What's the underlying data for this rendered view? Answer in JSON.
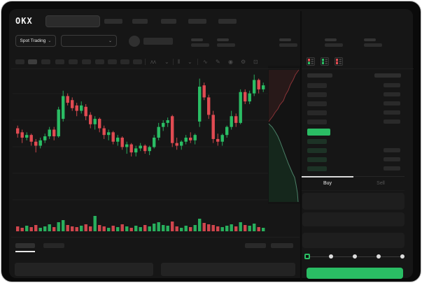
{
  "brand": {
    "logo_text": "OKX"
  },
  "colors": {
    "green": "#2abd64",
    "red": "#e14b52",
    "panel_bg": "#161616",
    "accent_text": "#ededed"
  },
  "header": {
    "search_placeholder": "",
    "nav_placeholder_count": 5
  },
  "market_bar": {
    "market_selector_label": "Spot Trading",
    "pair_selector_value": "",
    "stat_placeholder_count": 5
  },
  "chart_toolbar": {
    "timeframe_placeholder_count": 10,
    "active_timeframe_index": 1,
    "icons": [
      "indicator-icon",
      "chevron-down-icon",
      "candle-style-icon",
      "chevron-down-icon",
      "wave-icon",
      "draw-icon",
      "camera-icon",
      "settings-icon",
      "fullscreen-icon"
    ],
    "icon_glyphs": [
      "ʌʌ",
      "⌄",
      "⫴",
      "⌄",
      "∿",
      "✎",
      "◉",
      "⚙",
      "⊡"
    ]
  },
  "chart_data": {
    "type": "candlestick",
    "title": "",
    "xlabel": "",
    "ylabel": "",
    "axis_labels_visible": false,
    "grid": "horizontal",
    "price_scale": [
      0,
      100
    ],
    "candles_ohlc": [
      [
        57,
        59,
        50,
        53
      ],
      [
        54,
        56,
        46,
        50
      ],
      [
        50,
        54,
        48,
        52
      ],
      [
        52,
        53,
        44,
        47
      ],
      [
        47,
        49,
        39,
        44
      ],
      [
        44,
        50,
        42,
        48
      ],
      [
        48,
        53,
        46,
        51
      ],
      [
        51,
        58,
        49,
        56
      ],
      [
        56,
        58,
        48,
        51
      ],
      [
        51,
        73,
        50,
        71
      ],
      [
        64,
        85,
        62,
        81
      ],
      [
        81,
        83,
        74,
        76
      ],
      [
        78,
        80,
        70,
        72
      ],
      [
        74,
        76,
        66,
        70
      ],
      [
        70,
        77,
        68,
        74
      ],
      [
        73,
        75,
        63,
        66
      ],
      [
        67,
        69,
        57,
        60
      ],
      [
        60,
        66,
        56,
        64
      ],
      [
        64,
        65,
        54,
        57
      ],
      [
        57,
        59,
        49,
        52
      ],
      [
        52,
        56,
        48,
        54
      ],
      [
        54,
        55,
        45,
        47
      ],
      [
        47,
        52,
        44,
        50
      ],
      [
        50,
        51,
        41,
        43
      ],
      [
        43,
        47,
        38,
        45
      ],
      [
        45,
        46,
        36,
        39
      ],
      [
        39,
        44,
        36,
        42
      ],
      [
        42,
        46,
        40,
        44
      ],
      [
        44,
        45,
        38,
        40
      ],
      [
        40,
        44,
        37,
        43
      ],
      [
        43,
        52,
        42,
        50
      ],
      [
        50,
        61,
        48,
        58
      ],
      [
        58,
        63,
        55,
        61
      ],
      [
        61,
        65,
        58,
        63
      ],
      [
        66,
        67,
        43,
        46
      ],
      [
        46,
        50,
        41,
        44
      ],
      [
        44,
        48,
        41,
        47
      ],
      [
        47,
        52,
        45,
        50
      ],
      [
        50,
        54,
        46,
        48
      ],
      [
        48,
        53,
        45,
        52
      ],
      [
        62,
        94,
        58,
        88
      ],
      [
        89,
        91,
        78,
        80
      ],
      [
        80,
        82,
        64,
        67
      ],
      [
        67,
        70,
        46,
        49
      ],
      [
        49,
        53,
        44,
        47
      ],
      [
        47,
        53,
        44,
        52
      ],
      [
        52,
        59,
        50,
        58
      ],
      [
        58,
        70,
        56,
        66
      ],
      [
        66,
        68,
        58,
        61
      ],
      [
        61,
        86,
        60,
        84
      ],
      [
        84,
        86,
        75,
        77
      ],
      [
        77,
        85,
        75,
        83
      ],
      [
        83,
        97,
        81,
        93
      ],
      [
        93,
        94,
        83,
        86
      ],
      [
        86,
        91,
        84,
        89
      ]
    ],
    "volume": [
      7,
      5,
      8,
      6,
      9,
      5,
      7,
      10,
      6,
      13,
      16,
      9,
      7,
      6,
      8,
      10,
      7,
      22,
      9,
      7,
      5,
      8,
      6,
      10,
      7,
      5,
      8,
      6,
      9,
      7,
      11,
      13,
      9,
      8,
      14,
      7,
      5,
      8,
      6,
      9,
      18,
      12,
      10,
      9,
      7,
      6,
      8,
      10,
      7,
      13,
      9,
      8,
      11,
      6,
      5
    ],
    "depth": {
      "asks_curve": [
        [
          425,
          98
        ],
        [
          420,
          105
        ],
        [
          417,
          112
        ],
        [
          413,
          119
        ],
        [
          410,
          127
        ],
        [
          406,
          134
        ],
        [
          403,
          142
        ],
        [
          398,
          148
        ],
        [
          395,
          154
        ],
        [
          391,
          159
        ],
        [
          388,
          164
        ],
        [
          385,
          168
        ],
        [
          382,
          172
        ]
      ],
      "bids_curve": [
        [
          382,
          175
        ],
        [
          387,
          180
        ],
        [
          391,
          186
        ],
        [
          395,
          193
        ],
        [
          398,
          200
        ],
        [
          401,
          208
        ],
        [
          404,
          216
        ],
        [
          407,
          224
        ],
        [
          410,
          232
        ],
        [
          413,
          239
        ],
        [
          416,
          246
        ],
        [
          419,
          252
        ],
        [
          421,
          262
        ],
        [
          423,
          274
        ],
        [
          424,
          287
        ]
      ]
    }
  },
  "order_book": {
    "view_icons": [
      "book-combined-icon",
      "book-bids-icon",
      "book-asks-icon"
    ],
    "ask_row_count": 5,
    "bid_row_count": 4,
    "last_price_highlighted": true
  },
  "trade_form": {
    "buy_tab_label": "Buy",
    "sell_tab_label": "Sell",
    "active_tab": "Buy",
    "input_placeholder_count": 3,
    "slider_stop_count": 5,
    "slider_value_index": 0
  },
  "bottom_section": {
    "tab_placeholder_count": 2,
    "active_tab_index": 0,
    "right_control_count": 2,
    "content_panel_count": 2
  }
}
